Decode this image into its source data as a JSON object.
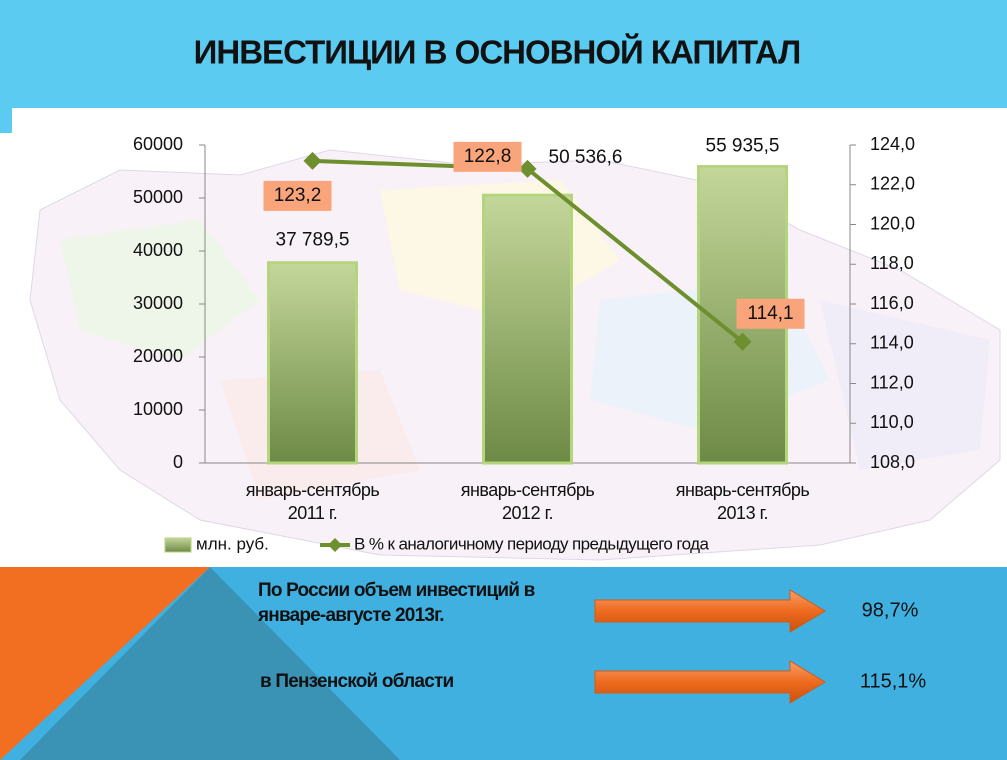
{
  "chart_data": {
    "type": "bar",
    "title": "ИНВЕСТИЦИИ В ОСНОВНОЙ КАПИТАЛ",
    "categories": [
      "январь-сентябрь 2011 г.",
      "январь-сентябрь 2012 г.",
      "январь-сентябрь 2013 г."
    ],
    "series": [
      {
        "name": "млн. руб.",
        "color": "#8aa85a",
        "values": [
          37789.5,
          50536.6,
          55935.5
        ],
        "value_labels": [
          "37 789,5",
          "50 536,6",
          "55 935,5"
        ]
      },
      {
        "name": "В % к аналогичному периоду предыдущего года",
        "color": "#6e8f2e",
        "axis": "y2",
        "type": "line",
        "values": [
          123.2,
          122.8,
          114.1
        ],
        "value_labels": [
          "123,2",
          "122,8",
          "114,1"
        ]
      }
    ],
    "ylim": [
      0,
      60000
    ],
    "yticks": [
      0,
      10000,
      20000,
      30000,
      40000,
      50000,
      60000
    ],
    "y2lim": [
      108,
      124
    ],
    "y2ticks": [
      {
        "value": 108,
        "label": "108,0"
      },
      {
        "value": 110,
        "label": "110,0"
      },
      {
        "value": 112,
        "label": "112,0"
      },
      {
        "value": 114,
        "label": "114,0"
      },
      {
        "value": 116,
        "label": "116,0"
      },
      {
        "value": 118,
        "label": "118,0"
      },
      {
        "value": 120,
        "label": "120,0"
      },
      {
        "value": 122,
        "label": "122,0"
      },
      {
        "value": 124,
        "label": "124,0"
      }
    ],
    "legend": "bottom"
  },
  "footer": {
    "items": [
      {
        "label": "По России объем инвестиций в январе-августе 2013г.",
        "value": "98,7%"
      },
      {
        "label": "в Пензенской области",
        "value": "115,1%"
      }
    ]
  }
}
